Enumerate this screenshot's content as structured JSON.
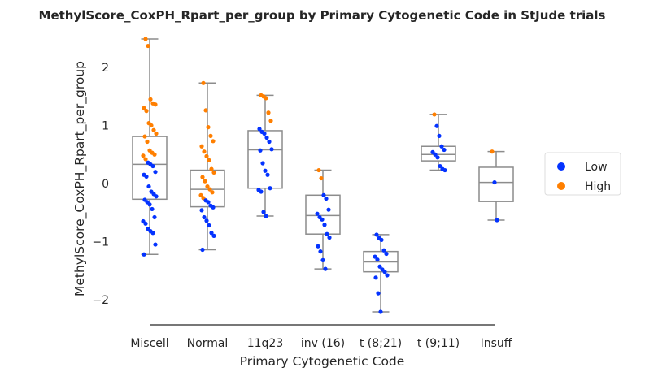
{
  "chart_data": {
    "type": "box",
    "title": "MethylScore_CoxPH_Rpart_per_group by Primary Cytogenetic Code in StJude trials",
    "xlabel": "Primary Cytogenetic Code",
    "ylabel": "MethylScore_CoxPH_Rpart_per_group",
    "ylim": [
      -2.45,
      2.55
    ],
    "yticks": [
      "2",
      "1",
      "0",
      "−1",
      "−2"
    ],
    "ytick_values": [
      2,
      1,
      0,
      -1,
      -2
    ],
    "grid": false,
    "legend_position": "right",
    "colors": {
      "Low": "#0433ff",
      "High": "#ff7f00",
      "box": "#8c8c8c",
      "axis": "#262626"
    },
    "legend": [
      {
        "name": "Low",
        "color": "#0433ff"
      },
      {
        "name": "High",
        "color": "#ff7f00"
      }
    ],
    "categories": [
      "Miscell",
      "Normal",
      "11q23",
      "inv (16)",
      "t (8;21)",
      "t (9;11)",
      "Insuff"
    ],
    "boxes": [
      {
        "category": "Miscell",
        "whislo": -1.22,
        "q1": -0.27,
        "med": 0.33,
        "q3": 0.81,
        "whishi": 2.49
      },
      {
        "category": "Normal",
        "whislo": -1.14,
        "q1": -0.4,
        "med": -0.1,
        "q3": 0.23,
        "whishi": 1.73
      },
      {
        "category": "11q23",
        "whislo": -0.56,
        "q1": -0.08,
        "med": 0.58,
        "q3": 0.91,
        "whishi": 1.52
      },
      {
        "category": "inv (16)",
        "whislo": -1.47,
        "q1": -0.87,
        "med": -0.55,
        "q3": -0.2,
        "whishi": 0.23
      },
      {
        "category": "t (8;21)",
        "whislo": -2.21,
        "q1": -1.52,
        "med": -1.35,
        "q3": -1.17,
        "whishi": -0.88
      },
      {
        "category": "t (9;11)",
        "whislo": 0.23,
        "q1": 0.39,
        "med": 0.5,
        "q3": 0.64,
        "whishi": 1.19
      },
      {
        "category": "Insuff",
        "whislo": -0.63,
        "q1": -0.31,
        "med": 0.02,
        "q3": 0.28,
        "whishi": 0.55
      }
    ],
    "points": [
      {
        "c": 0,
        "y": 2.49,
        "g": "High"
      },
      {
        "c": 0,
        "y": 2.37,
        "g": "High"
      },
      {
        "c": 0,
        "y": 1.45,
        "g": "High"
      },
      {
        "c": 0,
        "y": 1.38,
        "g": "High"
      },
      {
        "c": 0,
        "y": 1.36,
        "g": "High"
      },
      {
        "c": 0,
        "y": 1.3,
        "g": "High"
      },
      {
        "c": 0,
        "y": 1.25,
        "g": "High"
      },
      {
        "c": 0,
        "y": 1.04,
        "g": "High"
      },
      {
        "c": 0,
        "y": 1.0,
        "g": "High"
      },
      {
        "c": 0,
        "y": 0.92,
        "g": "High"
      },
      {
        "c": 0,
        "y": 0.86,
        "g": "High"
      },
      {
        "c": 0,
        "y": 0.81,
        "g": "High"
      },
      {
        "c": 0,
        "y": 0.72,
        "g": "High"
      },
      {
        "c": 0,
        "y": 0.57,
        "g": "High"
      },
      {
        "c": 0,
        "y": 0.53,
        "g": "High"
      },
      {
        "c": 0,
        "y": 0.5,
        "g": "High"
      },
      {
        "c": 0,
        "y": 0.48,
        "g": "High"
      },
      {
        "c": 0,
        "y": 0.42,
        "g": "High"
      },
      {
        "c": 0,
        "y": 0.36,
        "g": "Low"
      },
      {
        "c": 0,
        "y": 0.33,
        "g": "Low"
      },
      {
        "c": 0,
        "y": 0.3,
        "g": "Low"
      },
      {
        "c": 0,
        "y": 0.2,
        "g": "Low"
      },
      {
        "c": 0,
        "y": 0.15,
        "g": "Low"
      },
      {
        "c": 0,
        "y": 0.12,
        "g": "Low"
      },
      {
        "c": 0,
        "y": -0.05,
        "g": "Low"
      },
      {
        "c": 0,
        "y": -0.14,
        "g": "Low"
      },
      {
        "c": 0,
        "y": -0.18,
        "g": "Low"
      },
      {
        "c": 0,
        "y": -0.22,
        "g": "Low"
      },
      {
        "c": 0,
        "y": -0.28,
        "g": "Low"
      },
      {
        "c": 0,
        "y": -0.32,
        "g": "Low"
      },
      {
        "c": 0,
        "y": -0.36,
        "g": "Low"
      },
      {
        "c": 0,
        "y": -0.44,
        "g": "Low"
      },
      {
        "c": 0,
        "y": -0.58,
        "g": "Low"
      },
      {
        "c": 0,
        "y": -0.65,
        "g": "Low"
      },
      {
        "c": 0,
        "y": -0.69,
        "g": "Low"
      },
      {
        "c": 0,
        "y": -0.78,
        "g": "Low"
      },
      {
        "c": 0,
        "y": -0.82,
        "g": "Low"
      },
      {
        "c": 0,
        "y": -0.85,
        "g": "Low"
      },
      {
        "c": 0,
        "y": -1.05,
        "g": "Low"
      },
      {
        "c": 0,
        "y": -1.22,
        "g": "Low"
      },
      {
        "c": 1,
        "y": 1.73,
        "g": "High"
      },
      {
        "c": 1,
        "y": 1.26,
        "g": "High"
      },
      {
        "c": 1,
        "y": 0.97,
        "g": "High"
      },
      {
        "c": 1,
        "y": 0.82,
        "g": "High"
      },
      {
        "c": 1,
        "y": 0.73,
        "g": "High"
      },
      {
        "c": 1,
        "y": 0.64,
        "g": "High"
      },
      {
        "c": 1,
        "y": 0.55,
        "g": "High"
      },
      {
        "c": 1,
        "y": 0.47,
        "g": "High"
      },
      {
        "c": 1,
        "y": 0.4,
        "g": "High"
      },
      {
        "c": 1,
        "y": 0.25,
        "g": "High"
      },
      {
        "c": 1,
        "y": 0.19,
        "g": "High"
      },
      {
        "c": 1,
        "y": 0.11,
        "g": "High"
      },
      {
        "c": 1,
        "y": 0.04,
        "g": "High"
      },
      {
        "c": 1,
        "y": -0.05,
        "g": "High"
      },
      {
        "c": 1,
        "y": -0.1,
        "g": "High"
      },
      {
        "c": 1,
        "y": -0.15,
        "g": "High"
      },
      {
        "c": 1,
        "y": -0.2,
        "g": "High"
      },
      {
        "c": 1,
        "y": -0.25,
        "g": "High"
      },
      {
        "c": 1,
        "y": -0.29,
        "g": "Low"
      },
      {
        "c": 1,
        "y": -0.32,
        "g": "Low"
      },
      {
        "c": 1,
        "y": -0.38,
        "g": "Low"
      },
      {
        "c": 1,
        "y": -0.41,
        "g": "Low"
      },
      {
        "c": 1,
        "y": -0.46,
        "g": "Low"
      },
      {
        "c": 1,
        "y": -0.58,
        "g": "Low"
      },
      {
        "c": 1,
        "y": -0.64,
        "g": "Low"
      },
      {
        "c": 1,
        "y": -0.72,
        "g": "Low"
      },
      {
        "c": 1,
        "y": -0.85,
        "g": "Low"
      },
      {
        "c": 1,
        "y": -0.9,
        "g": "Low"
      },
      {
        "c": 1,
        "y": -1.14,
        "g": "Low"
      },
      {
        "c": 2,
        "y": 1.52,
        "g": "High"
      },
      {
        "c": 2,
        "y": 1.5,
        "g": "High"
      },
      {
        "c": 2,
        "y": 1.47,
        "g": "High"
      },
      {
        "c": 2,
        "y": 1.22,
        "g": "High"
      },
      {
        "c": 2,
        "y": 1.08,
        "g": "High"
      },
      {
        "c": 2,
        "y": 0.94,
        "g": "Low"
      },
      {
        "c": 2,
        "y": 0.89,
        "g": "Low"
      },
      {
        "c": 2,
        "y": 0.86,
        "g": "Low"
      },
      {
        "c": 2,
        "y": 0.79,
        "g": "Low"
      },
      {
        "c": 2,
        "y": 0.72,
        "g": "Low"
      },
      {
        "c": 2,
        "y": 0.59,
        "g": "Low"
      },
      {
        "c": 2,
        "y": 0.57,
        "g": "Low"
      },
      {
        "c": 2,
        "y": 0.35,
        "g": "Low"
      },
      {
        "c": 2,
        "y": 0.22,
        "g": "Low"
      },
      {
        "c": 2,
        "y": 0.15,
        "g": "Low"
      },
      {
        "c": 2,
        "y": -0.08,
        "g": "Low"
      },
      {
        "c": 2,
        "y": -0.11,
        "g": "Low"
      },
      {
        "c": 2,
        "y": -0.14,
        "g": "Low"
      },
      {
        "c": 2,
        "y": -0.49,
        "g": "Low"
      },
      {
        "c": 2,
        "y": -0.56,
        "g": "Low"
      },
      {
        "c": 3,
        "y": 0.23,
        "g": "High"
      },
      {
        "c": 3,
        "y": 0.09,
        "g": "High"
      },
      {
        "c": 3,
        "y": -0.2,
        "g": "Low"
      },
      {
        "c": 3,
        "y": -0.26,
        "g": "Low"
      },
      {
        "c": 3,
        "y": -0.45,
        "g": "Low"
      },
      {
        "c": 3,
        "y": -0.52,
        "g": "Low"
      },
      {
        "c": 3,
        "y": -0.58,
        "g": "Low"
      },
      {
        "c": 3,
        "y": -0.62,
        "g": "Low"
      },
      {
        "c": 3,
        "y": -0.71,
        "g": "Low"
      },
      {
        "c": 3,
        "y": -0.87,
        "g": "Low"
      },
      {
        "c": 3,
        "y": -0.93,
        "g": "Low"
      },
      {
        "c": 3,
        "y": -1.08,
        "g": "Low"
      },
      {
        "c": 3,
        "y": -1.17,
        "g": "Low"
      },
      {
        "c": 3,
        "y": -1.32,
        "g": "Low"
      },
      {
        "c": 3,
        "y": -1.47,
        "g": "Low"
      },
      {
        "c": 4,
        "y": -0.88,
        "g": "Low"
      },
      {
        "c": 4,
        "y": -0.94,
        "g": "Low"
      },
      {
        "c": 4,
        "y": -0.97,
        "g": "Low"
      },
      {
        "c": 4,
        "y": -1.15,
        "g": "Low"
      },
      {
        "c": 4,
        "y": -1.21,
        "g": "Low"
      },
      {
        "c": 4,
        "y": -1.26,
        "g": "Low"
      },
      {
        "c": 4,
        "y": -1.31,
        "g": "Low"
      },
      {
        "c": 4,
        "y": -1.43,
        "g": "Low"
      },
      {
        "c": 4,
        "y": -1.48,
        "g": "Low"
      },
      {
        "c": 4,
        "y": -1.52,
        "g": "Low"
      },
      {
        "c": 4,
        "y": -1.58,
        "g": "Low"
      },
      {
        "c": 4,
        "y": -1.62,
        "g": "Low"
      },
      {
        "c": 4,
        "y": -1.89,
        "g": "Low"
      },
      {
        "c": 4,
        "y": -2.21,
        "g": "Low"
      },
      {
        "c": 5,
        "y": 1.19,
        "g": "High"
      },
      {
        "c": 5,
        "y": 0.99,
        "g": "Low"
      },
      {
        "c": 5,
        "y": 0.82,
        "g": "Low"
      },
      {
        "c": 5,
        "y": 0.64,
        "g": "Low"
      },
      {
        "c": 5,
        "y": 0.58,
        "g": "Low"
      },
      {
        "c": 5,
        "y": 0.54,
        "g": "Low"
      },
      {
        "c": 5,
        "y": 0.5,
        "g": "Low"
      },
      {
        "c": 5,
        "y": 0.45,
        "g": "Low"
      },
      {
        "c": 5,
        "y": 0.3,
        "g": "Low"
      },
      {
        "c": 5,
        "y": 0.25,
        "g": "Low"
      },
      {
        "c": 5,
        "y": 0.23,
        "g": "Low"
      },
      {
        "c": 6,
        "y": 0.55,
        "g": "High"
      },
      {
        "c": 6,
        "y": 0.02,
        "g": "Low"
      },
      {
        "c": 6,
        "y": -0.63,
        "g": "Low"
      }
    ]
  }
}
